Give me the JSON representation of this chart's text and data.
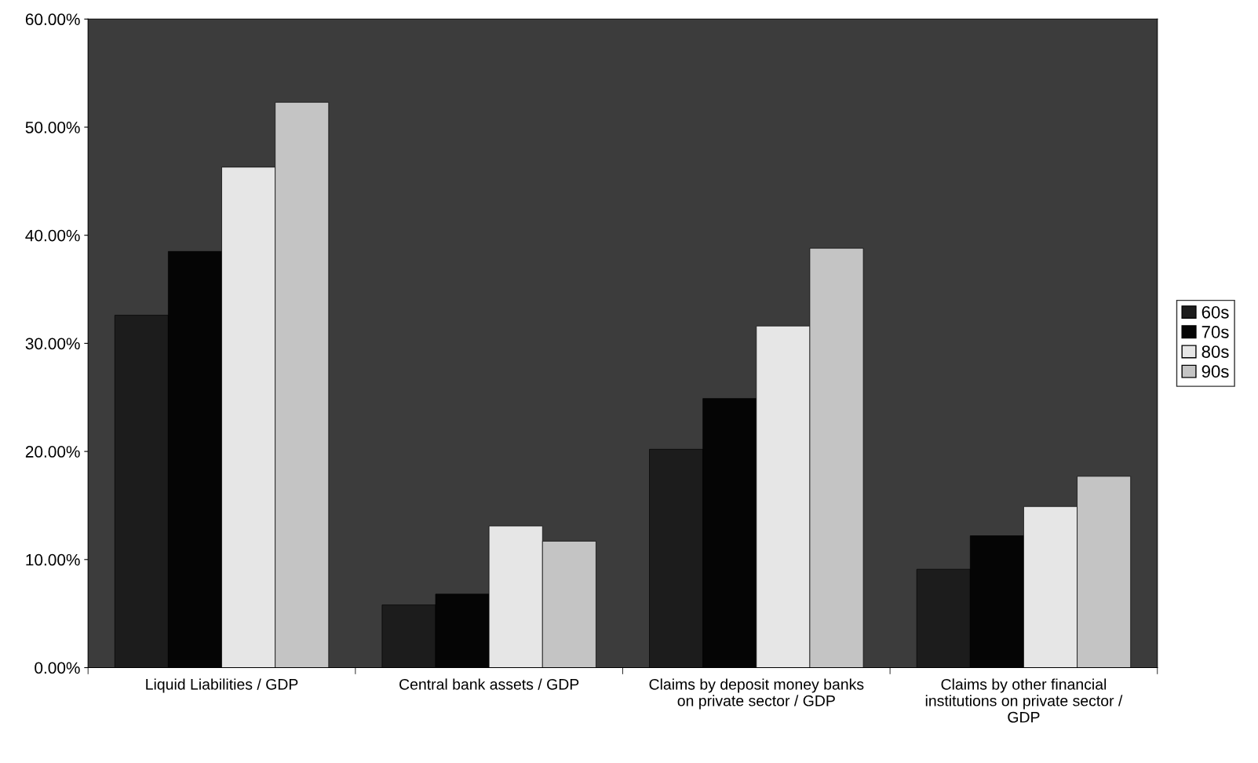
{
  "chart_data": {
    "type": "bar",
    "categories": [
      "Liquid Liabilities / GDP",
      "Central bank assets / GDP",
      "Claims by deposit money banks\non private sector / GDP",
      "Claims by other financial\ninstitutions on private sector /\nGDP"
    ],
    "series": [
      {
        "name": "60s",
        "color": "#1c1c1c",
        "values": [
          32.6,
          5.8,
          20.2,
          9.1
        ]
      },
      {
        "name": "70s",
        "color": "#050505",
        "values": [
          38.5,
          6.8,
          24.9,
          12.2
        ]
      },
      {
        "name": "80s",
        "color": "#e6e6e6",
        "values": [
          46.3,
          13.1,
          31.6,
          14.9
        ]
      },
      {
        "name": "90s",
        "color": "#c4c4c4",
        "values": [
          52.3,
          11.7,
          38.8,
          17.7
        ]
      }
    ],
    "ylim": [
      0,
      60
    ],
    "yticks": [
      {
        "value": 0,
        "label": "0.00%"
      },
      {
        "value": 10,
        "label": "10.00%"
      },
      {
        "value": 20,
        "label": "20.00%"
      },
      {
        "value": 30,
        "label": "30.00%"
      },
      {
        "value": 40,
        "label": "40.00%"
      },
      {
        "value": 50,
        "label": "50.00%"
      },
      {
        "value": 60,
        "label": "60.00%"
      }
    ],
    "grid": false,
    "legend": "right"
  }
}
